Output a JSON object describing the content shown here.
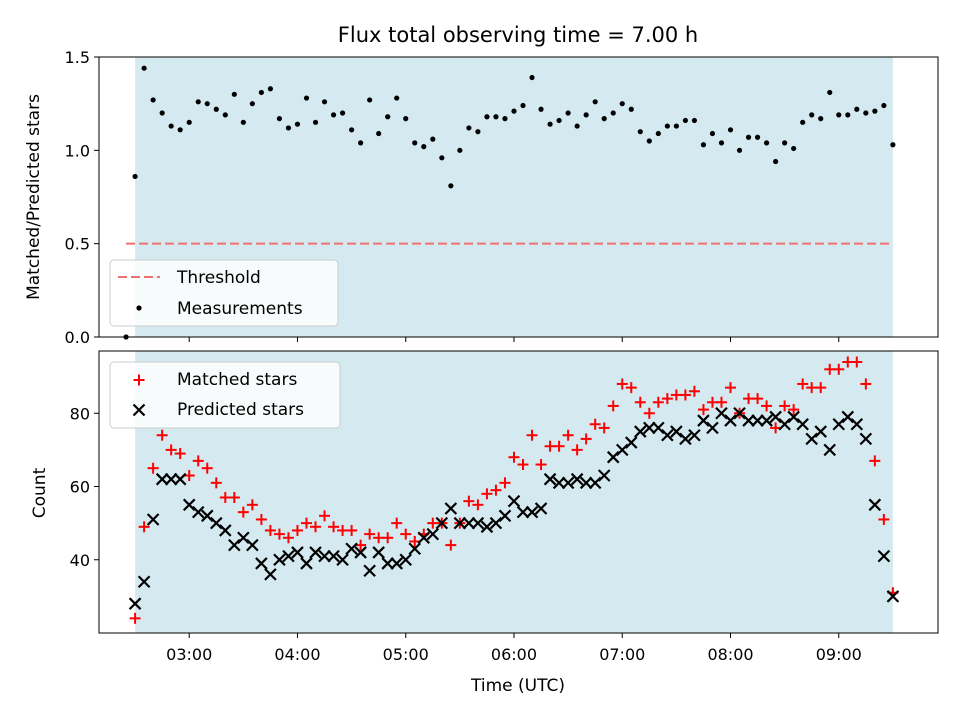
{
  "chart_data": [
    {
      "type": "scatter",
      "title": "Flux total observing time = 7.00 h",
      "xlabel": "",
      "ylabel": "Matched/Predicted stars",
      "xlim": [
        "02:10",
        "09:55"
      ],
      "ylim": [
        0,
        1.5
      ],
      "yticks": [
        0.0,
        0.5,
        1.0,
        1.5
      ],
      "ytick_labels": [
        "0.0",
        "0.5",
        "1.0",
        "1.5"
      ],
      "shaded_span": [
        "02:30",
        "09:30"
      ],
      "shaded_color": "#d4eaf0",
      "legend_position": "lower-left",
      "threshold": {
        "name": "Threshold",
        "value": 0.5,
        "x": [
          "02:25",
          "09:30"
        ],
        "color": "#f07070"
      },
      "series": [
        {
          "name": "Measurements",
          "color": "#000000",
          "x": [
            "02:25",
            "02:30",
            "02:35",
            "02:40",
            "02:45",
            "02:50",
            "02:55",
            "03:00",
            "03:05",
            "03:10",
            "03:15",
            "03:20",
            "03:25",
            "03:30",
            "03:35",
            "03:40",
            "03:45",
            "03:50",
            "03:55",
            "04:00",
            "04:05",
            "04:10",
            "04:15",
            "04:20",
            "04:25",
            "04:30",
            "04:35",
            "04:40",
            "04:45",
            "04:50",
            "04:55",
            "05:00",
            "05:05",
            "05:10",
            "05:15",
            "05:20",
            "05:25",
            "05:30",
            "05:35",
            "05:40",
            "05:45",
            "05:50",
            "05:55",
            "06:00",
            "06:05",
            "06:10",
            "06:15",
            "06:20",
            "06:25",
            "06:30",
            "06:35",
            "06:40",
            "06:45",
            "06:50",
            "06:55",
            "07:00",
            "07:05",
            "07:10",
            "07:15",
            "07:20",
            "07:25",
            "07:30",
            "07:35",
            "07:40",
            "07:45",
            "07:50",
            "07:55",
            "08:00",
            "08:05",
            "08:10",
            "08:15",
            "08:20",
            "08:25",
            "08:30",
            "08:35",
            "08:40",
            "08:45",
            "08:50",
            "08:55",
            "09:00",
            "09:05",
            "09:10",
            "09:15",
            "09:20",
            "09:25",
            "09:30"
          ],
          "y": [
            0.0,
            0.86,
            1.44,
            1.27,
            1.2,
            1.13,
            1.11,
            1.15,
            1.26,
            1.25,
            1.22,
            1.19,
            1.3,
            1.15,
            1.25,
            1.31,
            1.33,
            1.17,
            1.12,
            1.14,
            1.28,
            1.15,
            1.26,
            1.19,
            1.2,
            1.11,
            1.04,
            1.27,
            1.09,
            1.18,
            1.28,
            1.17,
            1.04,
            1.02,
            1.06,
            0.96,
            0.81,
            1.0,
            1.12,
            1.1,
            1.18,
            1.18,
            1.17,
            1.21,
            1.24,
            1.39,
            1.22,
            1.14,
            1.16,
            1.2,
            1.13,
            1.19,
            1.26,
            1.17,
            1.2,
            1.25,
            1.22,
            1.1,
            1.05,
            1.09,
            1.13,
            1.13,
            1.16,
            1.16,
            1.03,
            1.09,
            1.04,
            1.11,
            1.0,
            1.07,
            1.07,
            1.04,
            0.94,
            1.04,
            1.01,
            1.15,
            1.19,
            1.17,
            1.31,
            1.19,
            1.19,
            1.22,
            1.2,
            1.21,
            1.24,
            1.03
          ]
        }
      ]
    },
    {
      "type": "scatter",
      "title": "",
      "xlabel": "Time (UTC)",
      "ylabel": "Count",
      "xlim": [
        "02:10",
        "09:55"
      ],
      "xticks": [
        "03:00",
        "04:00",
        "05:00",
        "06:00",
        "07:00",
        "08:00",
        "09:00"
      ],
      "ylim": [
        20,
        97
      ],
      "yticks": [
        40,
        60,
        80
      ],
      "shaded_span": [
        "02:30",
        "09:30"
      ],
      "shaded_color": "#d4eaf0",
      "legend_position": "upper-left",
      "x": [
        "02:30",
        "02:35",
        "02:40",
        "02:45",
        "02:50",
        "02:55",
        "03:00",
        "03:05",
        "03:10",
        "03:15",
        "03:20",
        "03:25",
        "03:30",
        "03:35",
        "03:40",
        "03:45",
        "03:50",
        "03:55",
        "04:00",
        "04:05",
        "04:10",
        "04:15",
        "04:20",
        "04:25",
        "04:30",
        "04:35",
        "04:40",
        "04:45",
        "04:50",
        "04:55",
        "05:00",
        "05:05",
        "05:10",
        "05:15",
        "05:20",
        "05:25",
        "05:30",
        "05:35",
        "05:40",
        "05:45",
        "05:50",
        "05:55",
        "06:00",
        "06:05",
        "06:10",
        "06:15",
        "06:20",
        "06:25",
        "06:30",
        "06:35",
        "06:40",
        "06:45",
        "06:50",
        "06:55",
        "07:00",
        "07:05",
        "07:10",
        "07:15",
        "07:20",
        "07:25",
        "07:30",
        "07:35",
        "07:40",
        "07:45",
        "07:50",
        "07:55",
        "08:00",
        "08:05",
        "08:10",
        "08:15",
        "08:20",
        "08:25",
        "08:30",
        "08:35",
        "08:40",
        "08:45",
        "08:50",
        "08:55",
        "09:00",
        "09:05",
        "09:10",
        "09:15",
        "09:20",
        "09:25",
        "09:30"
      ],
      "series": [
        {
          "name": "Matched stars",
          "marker": "plus",
          "color": "#ff0000",
          "y": [
            24,
            49,
            65,
            74,
            70,
            69,
            63,
            67,
            65,
            61,
            57,
            57,
            53,
            55,
            51,
            48,
            47,
            46,
            48,
            50,
            49,
            52,
            49,
            48,
            48,
            44,
            47,
            46,
            46,
            50,
            47,
            45,
            47,
            50,
            50,
            44,
            50,
            56,
            55,
            58,
            59,
            61,
            68,
            66,
            74,
            66,
            71,
            71,
            74,
            70,
            73,
            77,
            76,
            82,
            88,
            87,
            83,
            80,
            83,
            84,
            85,
            85,
            86,
            81,
            83,
            83,
            87,
            80,
            84,
            84,
            82,
            76,
            82,
            81,
            88,
            87,
            87,
            92,
            92,
            94,
            94,
            88,
            67,
            51,
            31
          ]
        },
        {
          "name": "Predicted stars",
          "marker": "x",
          "color": "#000000",
          "y": [
            28,
            34,
            51,
            62,
            62,
            62,
            55,
            53,
            52,
            50,
            48,
            44,
            46,
            44,
            39,
            36,
            40,
            41,
            42,
            39,
            42,
            41,
            41,
            40,
            43,
            42,
            37,
            42,
            39,
            39,
            40,
            43,
            46,
            47,
            50,
            54,
            50,
            50,
            50,
            49,
            50,
            52,
            56,
            53,
            53,
            54,
            62,
            61,
            61,
            62,
            61,
            61,
            63,
            68,
            70,
            72,
            75,
            76,
            76,
            74,
            75,
            73,
            74,
            78,
            76,
            80,
            78,
            80,
            78,
            78,
            78,
            79,
            77,
            79,
            77,
            73,
            75,
            70,
            77,
            79,
            77,
            73,
            55,
            41,
            30
          ]
        }
      ]
    }
  ]
}
